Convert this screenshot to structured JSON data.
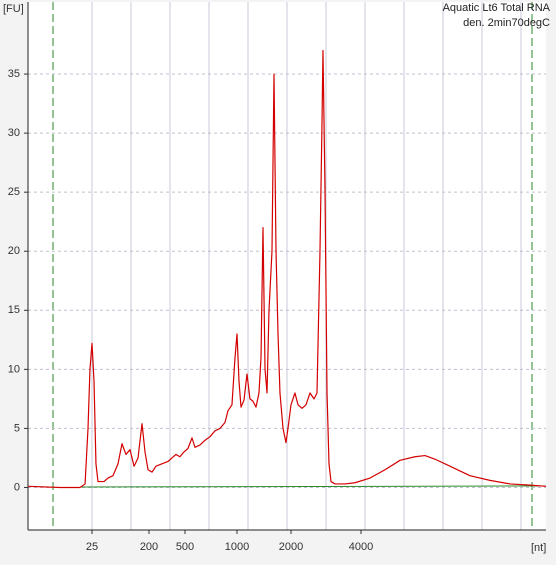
{
  "chart_data": {
    "type": "line",
    "title": "Aquatic Lt6 Total RNA",
    "subtitle": "den. 2min70degC",
    "y_label": "[FU]",
    "x_label": "[nt]",
    "color": "#d40000",
    "x": [
      2.4,
      7.8,
      16.1,
      19.4,
      21.6,
      23.2,
      25,
      26.9,
      28.9,
      31.1,
      38.7,
      44.8,
      53.8,
      64.5,
      74.7,
      86.4,
      100,
      116,
      134,
      155,
      173,
      193,
      216,
      239,
      278,
      324,
      359,
      397,
      439,
      486,
      520,
      549,
      571,
      611,
      653,
      698,
      746,
      797,
      852,
      887,
      935,
      974,
      1000,
      1026,
      1053,
      1094,
      1137,
      1181,
      1228,
      1276,
      1326,
      1361,
      1396,
      1433,
      1470,
      1508,
      1567,
      1608,
      1650,
      1693,
      1736,
      1805,
      1875,
      1924,
      2000,
      2080,
      2144,
      2230,
      2320,
      2414,
      2512,
      2587,
      2665,
      2719,
      2745,
      2801,
      2857,
      2914,
      2972,
      3092,
      3414,
      3769,
      4374,
      5074,
      5886,
      6827,
      7538,
      8323,
      9656,
      11770,
      14350,
      17500,
      21320,
      25000
    ],
    "values": [
      0.1,
      0,
      0,
      0.3,
      5,
      10,
      12.2,
      9,
      2,
      0.5,
      0.5,
      0.8,
      1,
      2,
      3.7,
      2.8,
      3.2,
      1.8,
      2.5,
      5.4,
      3,
      1.5,
      1.3,
      1.8,
      2,
      2.2,
      2.5,
      2.8,
      2.6,
      3,
      3.3,
      4.2,
      3.4,
      3.6,
      4,
      4.3,
      4.8,
      5,
      5.5,
      6.5,
      7,
      11,
      13,
      9,
      6.8,
      7.4,
      9.6,
      7.5,
      7.3,
      6.8,
      8,
      11,
      22,
      10,
      8,
      15,
      20,
      35,
      20,
      13,
      8,
      5,
      3.8,
      5,
      7,
      8,
      7,
      6.7,
      7,
      8,
      7.5,
      8,
      20,
      31,
      37,
      25,
      8,
      2,
      0.5,
      0.3,
      0.3,
      0.4,
      0.8,
      1.5,
      2.3,
      2.6,
      2.7,
      2.4,
      1.8,
      1,
      0.6,
      0.3,
      0.2,
      0.1
    ],
    "xlim": [
      2.4,
      25000
    ],
    "xticks": [
      25,
      200,
      500,
      1000,
      2000,
      4000
    ],
    "ylim": [
      -3.6,
      41.1
    ],
    "yticks": [
      0,
      5,
      10,
      15,
      20,
      25,
      30,
      35
    ],
    "grid": true
  }
}
